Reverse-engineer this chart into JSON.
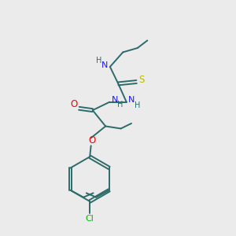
{
  "bg_color": "#ebebeb",
  "bond_color": "#2d6b6b",
  "atom_colors": {
    "N": "#1a1aff",
    "O": "#ff0000",
    "S": "#bbbb00",
    "Cl": "#00bb00",
    "H": "#2d6b6b"
  },
  "bond_width": 1.4,
  "figsize": [
    3.0,
    3.0
  ],
  "dpi": 100
}
